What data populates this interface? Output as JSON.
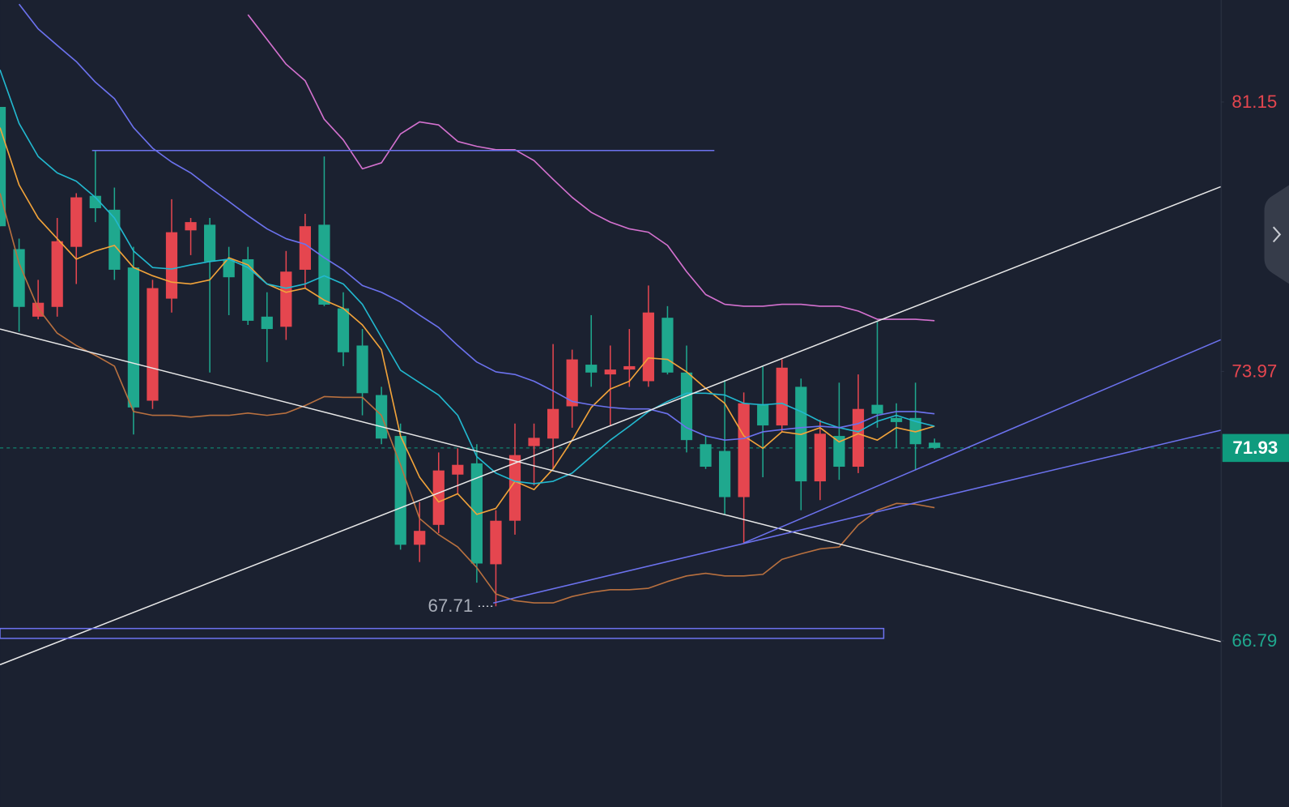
{
  "chart_data": {
    "type": "candlestick",
    "up_color": "#e5464f",
    "down_color": "#1fa88e",
    "ylim": [
      62.36,
      83.87
    ],
    "yticks": [
      81.15,
      73.97,
      66.79
    ],
    "ytick_colors": [
      "#e5464f",
      "#e5464f",
      "#1fa88e"
    ],
    "last_price": 71.93,
    "last_price_color": "#0f9b7e",
    "low_price": 67.71,
    "candles": {
      "open": [
        81.02,
        77.23,
        75.43,
        75.69,
        77.29,
        78.65,
        78.28,
        76.74,
        73.19,
        75.91,
        77.73,
        77.88,
        76.96,
        76.96,
        75.43,
        75.16,
        76.68,
        77.88,
        75.65,
        74.66,
        73.34,
        72.25,
        69.35,
        69.88,
        71.22,
        71.52,
        68.83,
        69.99,
        71.98,
        72.18,
        73.04,
        74.15,
        73.89,
        74.02,
        73.71,
        75.4,
        73.94,
        72.03,
        71.85,
        70.62,
        73.1,
        72.53,
        73.56,
        71.04,
        72.25,
        71.43,
        73.08,
        72.73,
        72.73,
        72.07
      ],
      "high": [
        81.02,
        77.51,
        76.41,
        78.06,
        78.72,
        79.86,
        78.87,
        77.29,
        76.41,
        78.56,
        78.06,
        78.06,
        77.29,
        77.29,
        76.08,
        77.18,
        78.17,
        79.7,
        76.08,
        75.1,
        73.56,
        72.58,
        70.49,
        71.81,
        71.92,
        72.03,
        70.27,
        72.58,
        72.58,
        74.7,
        74.55,
        75.47,
        74.66,
        75.1,
        76.26,
        75.71,
        74.66,
        72.25,
        73.74,
        73.41,
        74.11,
        74.29,
        73.78,
        72.68,
        73.67,
        73.89,
        75.32,
        73.12,
        73.67,
        72.18
      ],
      "low": [
        77.84,
        75.03,
        75.36,
        75.43,
        76.3,
        77.95,
        76.41,
        72.29,
        72.97,
        75.54,
        77.07,
        73.94,
        75.47,
        75.21,
        74.22,
        74.81,
        76.19,
        75.71,
        74.11,
        72.8,
        72.03,
        69.22,
        68.89,
        69.66,
        70.71,
        68.34,
        67.71,
        69.62,
        70.93,
        71.37,
        72.47,
        73.56,
        72.51,
        73.56,
        73.56,
        73.89,
        71.81,
        71.37,
        70.16,
        69.4,
        71.15,
        72.36,
        70.27,
        70.54,
        71.08,
        71.26,
        72.47,
        71.92,
        71.33,
        71.9
      ],
      "close": [
        77.84,
        75.69,
        75.8,
        77.44,
        78.61,
        78.32,
        76.68,
        73.01,
        76.19,
        77.68,
        77.95,
        76.9,
        76.48,
        75.32,
        75.1,
        76.63,
        77.84,
        75.75,
        74.48,
        73.39,
        72.18,
        69.35,
        69.72,
        71.33,
        71.48,
        68.85,
        69.99,
        71.74,
        72.2,
        72.97,
        74.29,
        73.94,
        74.02,
        74.11,
        75.54,
        73.94,
        72.14,
        71.43,
        70.62,
        73.12,
        72.53,
        74.07,
        71.04,
        72.31,
        71.43,
        72.97,
        72.84,
        72.62,
        72.03,
        71.93
      ]
    },
    "series": [
      {
        "color": "#f2a33a",
        "values": [
          80.47,
          78.94,
          78.06,
          77.51,
          76.96,
          77.18,
          77.33,
          76.74,
          76.52,
          76.35,
          76.3,
          76.41,
          77.0,
          76.81,
          76.3,
          76.08,
          76.19,
          75.87,
          75.65,
          75.21,
          74.55,
          72.25,
          71.15,
          70.49,
          70.71,
          70.16,
          70.32,
          71.04,
          70.82,
          71.37,
          72.14,
          73.01,
          73.5,
          73.71,
          74.33,
          74.29,
          73.96,
          73.52,
          73.12,
          72.25,
          71.92,
          72.36,
          72.29,
          72.47,
          72.09,
          72.31,
          72.14,
          72.47,
          72.36,
          72.51
        ]
      },
      {
        "color": "#22b8cf",
        "values": [
          82.01,
          80.58,
          79.7,
          79.26,
          79.04,
          78.61,
          78.06,
          77.18,
          76.74,
          76.7,
          76.81,
          76.9,
          76.96,
          76.74,
          76.3,
          76.19,
          76.3,
          76.52,
          76.3,
          75.76,
          74.88,
          74.0,
          73.67,
          73.34,
          72.8,
          71.7,
          71.26,
          71.04,
          70.98,
          71.04,
          71.26,
          71.7,
          72.14,
          72.51,
          72.9,
          73.17,
          73.39,
          73.39,
          73.34,
          73.12,
          73.08,
          73.12,
          72.9,
          72.64,
          72.47,
          72.36,
          72.64,
          72.8,
          72.64,
          72.51
        ]
      },
      {
        "color": "#6c72ee",
        "values": [
          null,
          83.76,
          83.1,
          82.66,
          82.23,
          81.68,
          81.24,
          80.47,
          79.92,
          79.55,
          79.26,
          78.87,
          78.5,
          78.12,
          77.77,
          77.51,
          77.36,
          77.0,
          76.68,
          76.26,
          76.08,
          75.82,
          75.47,
          75.14,
          74.66,
          74.22,
          73.96,
          73.89,
          73.71,
          73.45,
          73.17,
          73.08,
          73.01,
          72.97,
          72.97,
          72.84,
          72.47,
          72.25,
          72.14,
          72.18,
          72.36,
          72.42,
          72.47,
          72.51,
          72.47,
          72.58,
          72.8,
          72.9,
          72.9,
          72.84
        ]
      },
      {
        "color": "#d471cf",
        "values": [
          null,
          null,
          null,
          null,
          null,
          null,
          null,
          null,
          null,
          null,
          null,
          null,
          null,
          83.48,
          82.82,
          82.16,
          81.72,
          80.69,
          80.14,
          79.37,
          79.53,
          80.3,
          80.62,
          80.54,
          80.1,
          79.97,
          79.88,
          79.88,
          79.59,
          79.09,
          78.61,
          78.21,
          77.95,
          77.77,
          77.68,
          77.33,
          76.63,
          76.02,
          75.76,
          75.71,
          75.71,
          75.76,
          75.76,
          75.71,
          75.71,
          75.58,
          75.36,
          75.36,
          75.36,
          75.32
        ]
      },
      {
        "color": "#b8703f",
        "values": [
          78.72,
          76.85,
          75.65,
          74.99,
          74.66,
          74.4,
          74.11,
          72.9,
          72.8,
          72.8,
          72.75,
          72.8,
          72.8,
          72.86,
          72.8,
          72.86,
          73.06,
          73.3,
          73.28,
          73.28,
          72.8,
          71.48,
          70.05,
          69.62,
          69.29,
          68.74,
          68.04,
          67.86,
          67.8,
          67.8,
          67.97,
          68.08,
          68.15,
          68.15,
          68.19,
          68.37,
          68.52,
          68.59,
          68.52,
          68.52,
          68.56,
          68.96,
          69.11,
          69.24,
          69.29,
          69.88,
          70.27,
          70.45,
          70.43,
          70.34
        ]
      }
    ]
  }
}
